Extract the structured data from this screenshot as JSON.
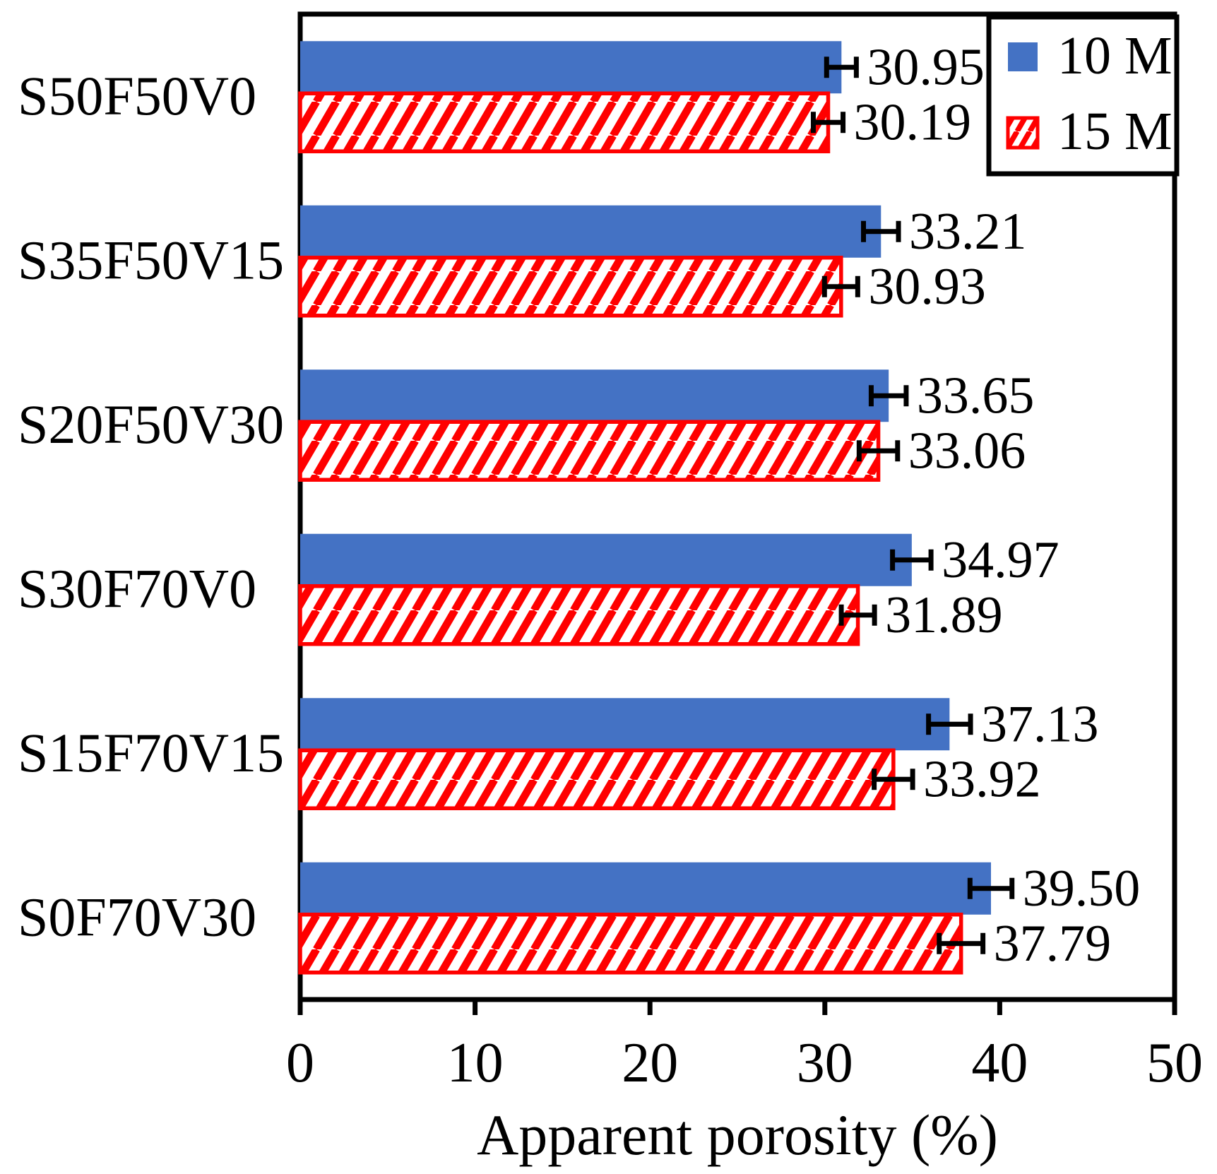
{
  "chart_data": {
    "type": "bar",
    "orientation": "horizontal",
    "title": "",
    "xlabel": "Apparent porosity (%)",
    "ylabel": "",
    "xlim": [
      0,
      50
    ],
    "xticks": [
      0,
      10,
      20,
      30,
      40,
      50
    ],
    "grid": false,
    "legend_position": "top-right",
    "categories": [
      "S50F50V0",
      "S35F50V15",
      "S20F50V30",
      "S30F70V0",
      "S15F70V15",
      "S0F70V30"
    ],
    "series": [
      {
        "name": "10 M",
        "swatch": "solid-square-icon",
        "color": "#4472C4",
        "values": [
          30.95,
          33.21,
          33.65,
          34.97,
          37.13,
          39.5
        ],
        "errors": [
          0.85,
          1.0,
          1.0,
          1.1,
          1.2,
          1.2
        ],
        "labels": [
          "30.95",
          "33.21",
          "33.65",
          "34.97",
          "37.13",
          "39.50"
        ]
      },
      {
        "name": "15 M",
        "swatch": "red-diagonal-hatch-square-icon",
        "color": "#FF0000",
        "values": [
          30.19,
          30.93,
          33.06,
          31.89,
          33.92,
          37.79
        ],
        "errors": [
          0.85,
          0.95,
          1.1,
          0.95,
          1.1,
          1.25
        ],
        "labels": [
          "30.19",
          "30.93",
          "33.06",
          "31.89",
          "33.92",
          "37.79"
        ]
      }
    ],
    "colors": {
      "axis": "#000000",
      "text": "#000000",
      "error_bar": "#000000",
      "plot_background": "#FFFFFF"
    }
  }
}
